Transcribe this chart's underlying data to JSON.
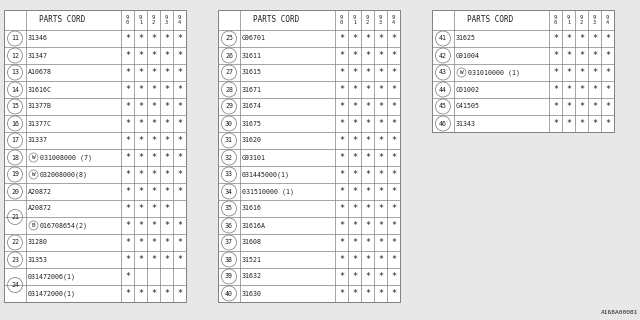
{
  "bg_color": "#e8e8e8",
  "line_color": "#808080",
  "text_color": "#202020",
  "col_headers": [
    "9\n0",
    "9\n1",
    "9\n2",
    "9\n3",
    "9\n4"
  ],
  "tables": [
    {
      "rows": [
        {
          "num": "11",
          "prefix": "",
          "part": "31346",
          "stars": [
            1,
            1,
            1,
            1,
            1
          ]
        },
        {
          "num": "12",
          "prefix": "",
          "part": "31347",
          "stars": [
            1,
            1,
            1,
            1,
            1
          ]
        },
        {
          "num": "13",
          "prefix": "",
          "part": "A10678",
          "stars": [
            1,
            1,
            1,
            1,
            1
          ]
        },
        {
          "num": "14",
          "prefix": "",
          "part": "31616C",
          "stars": [
            1,
            1,
            1,
            1,
            1
          ]
        },
        {
          "num": "15",
          "prefix": "",
          "part": "31377B",
          "stars": [
            1,
            1,
            1,
            1,
            1
          ]
        },
        {
          "num": "16",
          "prefix": "",
          "part": "31377C",
          "stars": [
            1,
            1,
            1,
            1,
            1
          ]
        },
        {
          "num": "17",
          "prefix": "",
          "part": "31337",
          "stars": [
            1,
            1,
            1,
            1,
            1
          ]
        },
        {
          "num": "18",
          "prefix": "W",
          "part": "031008000 (7)",
          "stars": [
            1,
            1,
            1,
            1,
            1
          ]
        },
        {
          "num": "19",
          "prefix": "W",
          "part": "032008000(8)",
          "stars": [
            1,
            1,
            1,
            1,
            1
          ]
        },
        {
          "num": "20",
          "prefix": "",
          "part": "A20872",
          "stars": [
            1,
            1,
            1,
            1,
            1
          ]
        },
        {
          "num": "21",
          "prefix": "",
          "part": "A20872",
          "stars": [
            1,
            1,
            1,
            1,
            0
          ],
          "group_start": true
        },
        {
          "num": "21",
          "prefix": "B",
          "part": "016708654(2)",
          "stars": [
            1,
            1,
            1,
            1,
            1
          ],
          "group_end": true
        },
        {
          "num": "22",
          "prefix": "",
          "part": "31280",
          "stars": [
            1,
            1,
            1,
            1,
            1
          ]
        },
        {
          "num": "23",
          "prefix": "",
          "part": "31353",
          "stars": [
            1,
            1,
            1,
            1,
            1
          ]
        },
        {
          "num": "24",
          "prefix": "",
          "part": "031472006(1)",
          "stars": [
            1,
            0,
            0,
            0,
            0
          ],
          "group_start": true
        },
        {
          "num": "24",
          "prefix": "",
          "part": "031472000(1)",
          "stars": [
            1,
            1,
            1,
            1,
            1
          ],
          "group_end": true
        }
      ]
    },
    {
      "rows": [
        {
          "num": "25",
          "prefix": "",
          "part": "G96701",
          "stars": [
            1,
            1,
            1,
            1,
            1
          ]
        },
        {
          "num": "26",
          "prefix": "",
          "part": "31611",
          "stars": [
            1,
            1,
            1,
            1,
            1
          ]
        },
        {
          "num": "27",
          "prefix": "",
          "part": "31615",
          "stars": [
            1,
            1,
            1,
            1,
            1
          ]
        },
        {
          "num": "28",
          "prefix": "",
          "part": "31671",
          "stars": [
            1,
            1,
            1,
            1,
            1
          ]
        },
        {
          "num": "29",
          "prefix": "",
          "part": "31674",
          "stars": [
            1,
            1,
            1,
            1,
            1
          ]
        },
        {
          "num": "30",
          "prefix": "",
          "part": "31675",
          "stars": [
            1,
            1,
            1,
            1,
            1
          ]
        },
        {
          "num": "31",
          "prefix": "",
          "part": "31620",
          "stars": [
            1,
            1,
            1,
            1,
            1
          ]
        },
        {
          "num": "32",
          "prefix": "",
          "part": "G93101",
          "stars": [
            1,
            1,
            1,
            1,
            1
          ]
        },
        {
          "num": "33",
          "prefix": "",
          "part": "031445000(1)",
          "stars": [
            1,
            1,
            1,
            1,
            1
          ]
        },
        {
          "num": "34",
          "prefix": "",
          "part": "031510000 (1)",
          "stars": [
            1,
            1,
            1,
            1,
            1
          ]
        },
        {
          "num": "35",
          "prefix": "",
          "part": "31616",
          "stars": [
            1,
            1,
            1,
            1,
            1
          ]
        },
        {
          "num": "36",
          "prefix": "",
          "part": "31616A",
          "stars": [
            1,
            1,
            1,
            1,
            1
          ]
        },
        {
          "num": "37",
          "prefix": "",
          "part": "31608",
          "stars": [
            1,
            1,
            1,
            1,
            1
          ]
        },
        {
          "num": "38",
          "prefix": "",
          "part": "31521",
          "stars": [
            1,
            1,
            1,
            1,
            1
          ]
        },
        {
          "num": "39",
          "prefix": "",
          "part": "31632",
          "stars": [
            1,
            1,
            1,
            1,
            1
          ]
        },
        {
          "num": "40",
          "prefix": "",
          "part": "31630",
          "stars": [
            1,
            1,
            1,
            1,
            1
          ]
        }
      ]
    },
    {
      "rows": [
        {
          "num": "41",
          "prefix": "",
          "part": "31625",
          "stars": [
            1,
            1,
            1,
            1,
            1
          ]
        },
        {
          "num": "42",
          "prefix": "",
          "part": "G91004",
          "stars": [
            1,
            1,
            1,
            1,
            1
          ]
        },
        {
          "num": "43",
          "prefix": "W",
          "part": "031010000 (1)",
          "stars": [
            1,
            1,
            1,
            1,
            1
          ]
        },
        {
          "num": "44",
          "prefix": "",
          "part": "C01002",
          "stars": [
            1,
            1,
            1,
            1,
            1
          ]
        },
        {
          "num": "45",
          "prefix": "",
          "part": "G41505",
          "stars": [
            1,
            1,
            1,
            1,
            1
          ]
        },
        {
          "num": "46",
          "prefix": "",
          "part": "31343",
          "stars": [
            1,
            1,
            1,
            1,
            1
          ]
        }
      ]
    }
  ],
  "watermark": "A168A00081"
}
